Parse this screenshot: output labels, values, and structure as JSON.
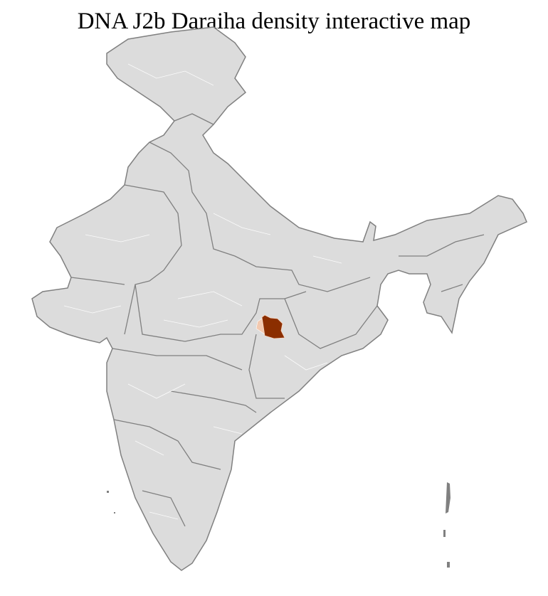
{
  "title": "DNA J2b Daraiha density interactive map",
  "colors": {
    "land": "#dcdcdc",
    "state_border": "#808080",
    "district_border": "#ffffff",
    "high_density": "#8b2e00",
    "low_density": "#f2c9b0"
  }
}
